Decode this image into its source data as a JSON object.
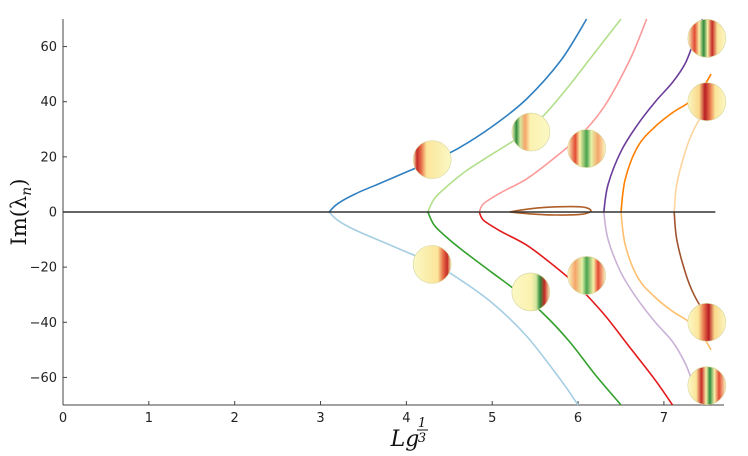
{
  "chart_data": {
    "type": "line",
    "title": "",
    "xlabel": "Lg",
    "xlabel_exponent_numerator": "1",
    "xlabel_exponent_denominator": "3",
    "ylabel": "Im(λ",
    "ylabel_subscript": "n",
    "ylabel_close": ")",
    "xlim": [
      0,
      7.7
    ],
    "ylim": [
      -70,
      70
    ],
    "xticks": [
      0,
      1,
      2,
      3,
      4,
      5,
      6,
      7
    ],
    "yticks": [
      -60,
      -40,
      -20,
      0,
      20,
      40,
      60
    ],
    "grid": false,
    "series": [
      {
        "color": "#2f7fc1",
        "x": [
          3.1,
          3.2,
          3.4,
          3.7,
          4.0,
          4.3,
          4.6,
          5.0,
          5.4,
          5.8,
          6.1
        ],
        "y": [
          0,
          3,
          6.5,
          10.5,
          14.5,
          18.5,
          23,
          31,
          41,
          55,
          70
        ]
      },
      {
        "color": "#a6cee3",
        "x": [
          3.1,
          3.2,
          3.4,
          3.7,
          4.0,
          4.3,
          4.6,
          5.0,
          5.4,
          5.8,
          6.0
        ],
        "y": [
          0,
          -3,
          -6.5,
          -10.5,
          -14.5,
          -18.5,
          -24,
          -33,
          -45,
          -61,
          -70
        ]
      },
      {
        "color": "#b2df8a",
        "x": [
          4.25,
          4.33,
          4.5,
          4.7,
          5.0,
          5.3,
          5.6,
          5.9,
          6.2,
          6.5
        ],
        "y": [
          0,
          5,
          10,
          15,
          21,
          27,
          35,
          46,
          58,
          70
        ]
      },
      {
        "color": "#33a02c",
        "x": [
          4.25,
          4.33,
          4.5,
          4.7,
          5.0,
          5.3,
          5.6,
          5.9,
          6.2,
          6.5
        ],
        "y": [
          0,
          -5,
          -10,
          -15,
          -22,
          -29,
          -37,
          -47,
          -59,
          -70
        ]
      },
      {
        "color": "#fb9a99",
        "x": [
          4.85,
          4.9,
          5.1,
          5.4,
          5.7,
          6.0,
          6.3,
          6.6,
          6.8
        ],
        "y": [
          0,
          3,
          7,
          12,
          19,
          27,
          38,
          55,
          70
        ]
      },
      {
        "color": "#e31a1c",
        "x": [
          4.85,
          4.9,
          5.1,
          5.4,
          5.7,
          6.0,
          6.3,
          6.6,
          6.9,
          7.1
        ],
        "y": [
          0,
          -3,
          -7,
          -12,
          -19,
          -27,
          -37,
          -49,
          -61,
          -70
        ]
      },
      {
        "color": "#b05e28",
        "x": [
          5.2,
          5.45,
          5.75,
          6.05,
          6.15,
          6.05,
          5.75,
          5.45,
          5.2
        ],
        "y": [
          0,
          1.2,
          1.9,
          1.8,
          0.5,
          -0.8,
          -1.1,
          -0.7,
          0
        ]
      },
      {
        "color": "#6a3d9a",
        "x": [
          6.3,
          6.35,
          6.5,
          6.7,
          6.9,
          7.1,
          7.25,
          7.35,
          7.45
        ],
        "y": [
          0,
          10,
          22,
          32,
          40,
          47,
          54,
          62,
          70
        ]
      },
      {
        "color": "#cab2d6",
        "x": [
          6.3,
          6.35,
          6.5,
          6.7,
          6.9,
          7.1,
          7.25,
          7.35,
          7.45
        ],
        "y": [
          0,
          -10,
          -22,
          -32,
          -40,
          -47,
          -55,
          -63,
          -70
        ]
      },
      {
        "color": "#ff7f00",
        "x": [
          6.5,
          6.55,
          6.7,
          6.9,
          7.1,
          7.3,
          7.45,
          7.55
        ],
        "y": [
          0,
          12,
          24,
          31,
          36,
          40,
          45,
          50
        ]
      },
      {
        "color": "#fdbf6f",
        "x": [
          6.5,
          6.55,
          6.7,
          6.9,
          7.1,
          7.3,
          7.45,
          7.55
        ],
        "y": [
          0,
          -12,
          -24,
          -31,
          -36,
          -40,
          -45,
          -50
        ]
      },
      {
        "color": "#a0522d",
        "x": [
          7.12,
          7.15,
          7.25,
          7.35,
          7.5
        ],
        "y": [
          0,
          -10,
          -22,
          -30,
          -38
        ]
      },
      {
        "color": "#fdd49e",
        "x": [
          7.12,
          7.15,
          7.25,
          7.35,
          7.5
        ],
        "y": [
          0,
          10,
          22,
          30,
          38
        ]
      },
      {
        "color": "#333333",
        "x": [
          0,
          7.6
        ],
        "y": [
          0,
          0
        ]
      }
    ],
    "insets": [
      {
        "x": 4.3,
        "y": 19,
        "pattern": "red-left"
      },
      {
        "x": 4.3,
        "y": -19,
        "pattern": "red-right"
      },
      {
        "x": 5.45,
        "y": 29,
        "pattern": "green-red-left"
      },
      {
        "x": 5.45,
        "y": -29,
        "pattern": "green-red-right"
      },
      {
        "x": 6.1,
        "y": 23,
        "pattern": "red-green-mid"
      },
      {
        "x": 6.1,
        "y": -23,
        "pattern": "red-green-mid-b"
      },
      {
        "x": 7.5,
        "y": 63,
        "pattern": "stripes-a"
      },
      {
        "x": 7.5,
        "y": 40,
        "pattern": "red-center"
      },
      {
        "x": 7.5,
        "y": -40,
        "pattern": "red-center-b"
      },
      {
        "x": 7.5,
        "y": -63,
        "pattern": "stripes-b"
      }
    ]
  }
}
